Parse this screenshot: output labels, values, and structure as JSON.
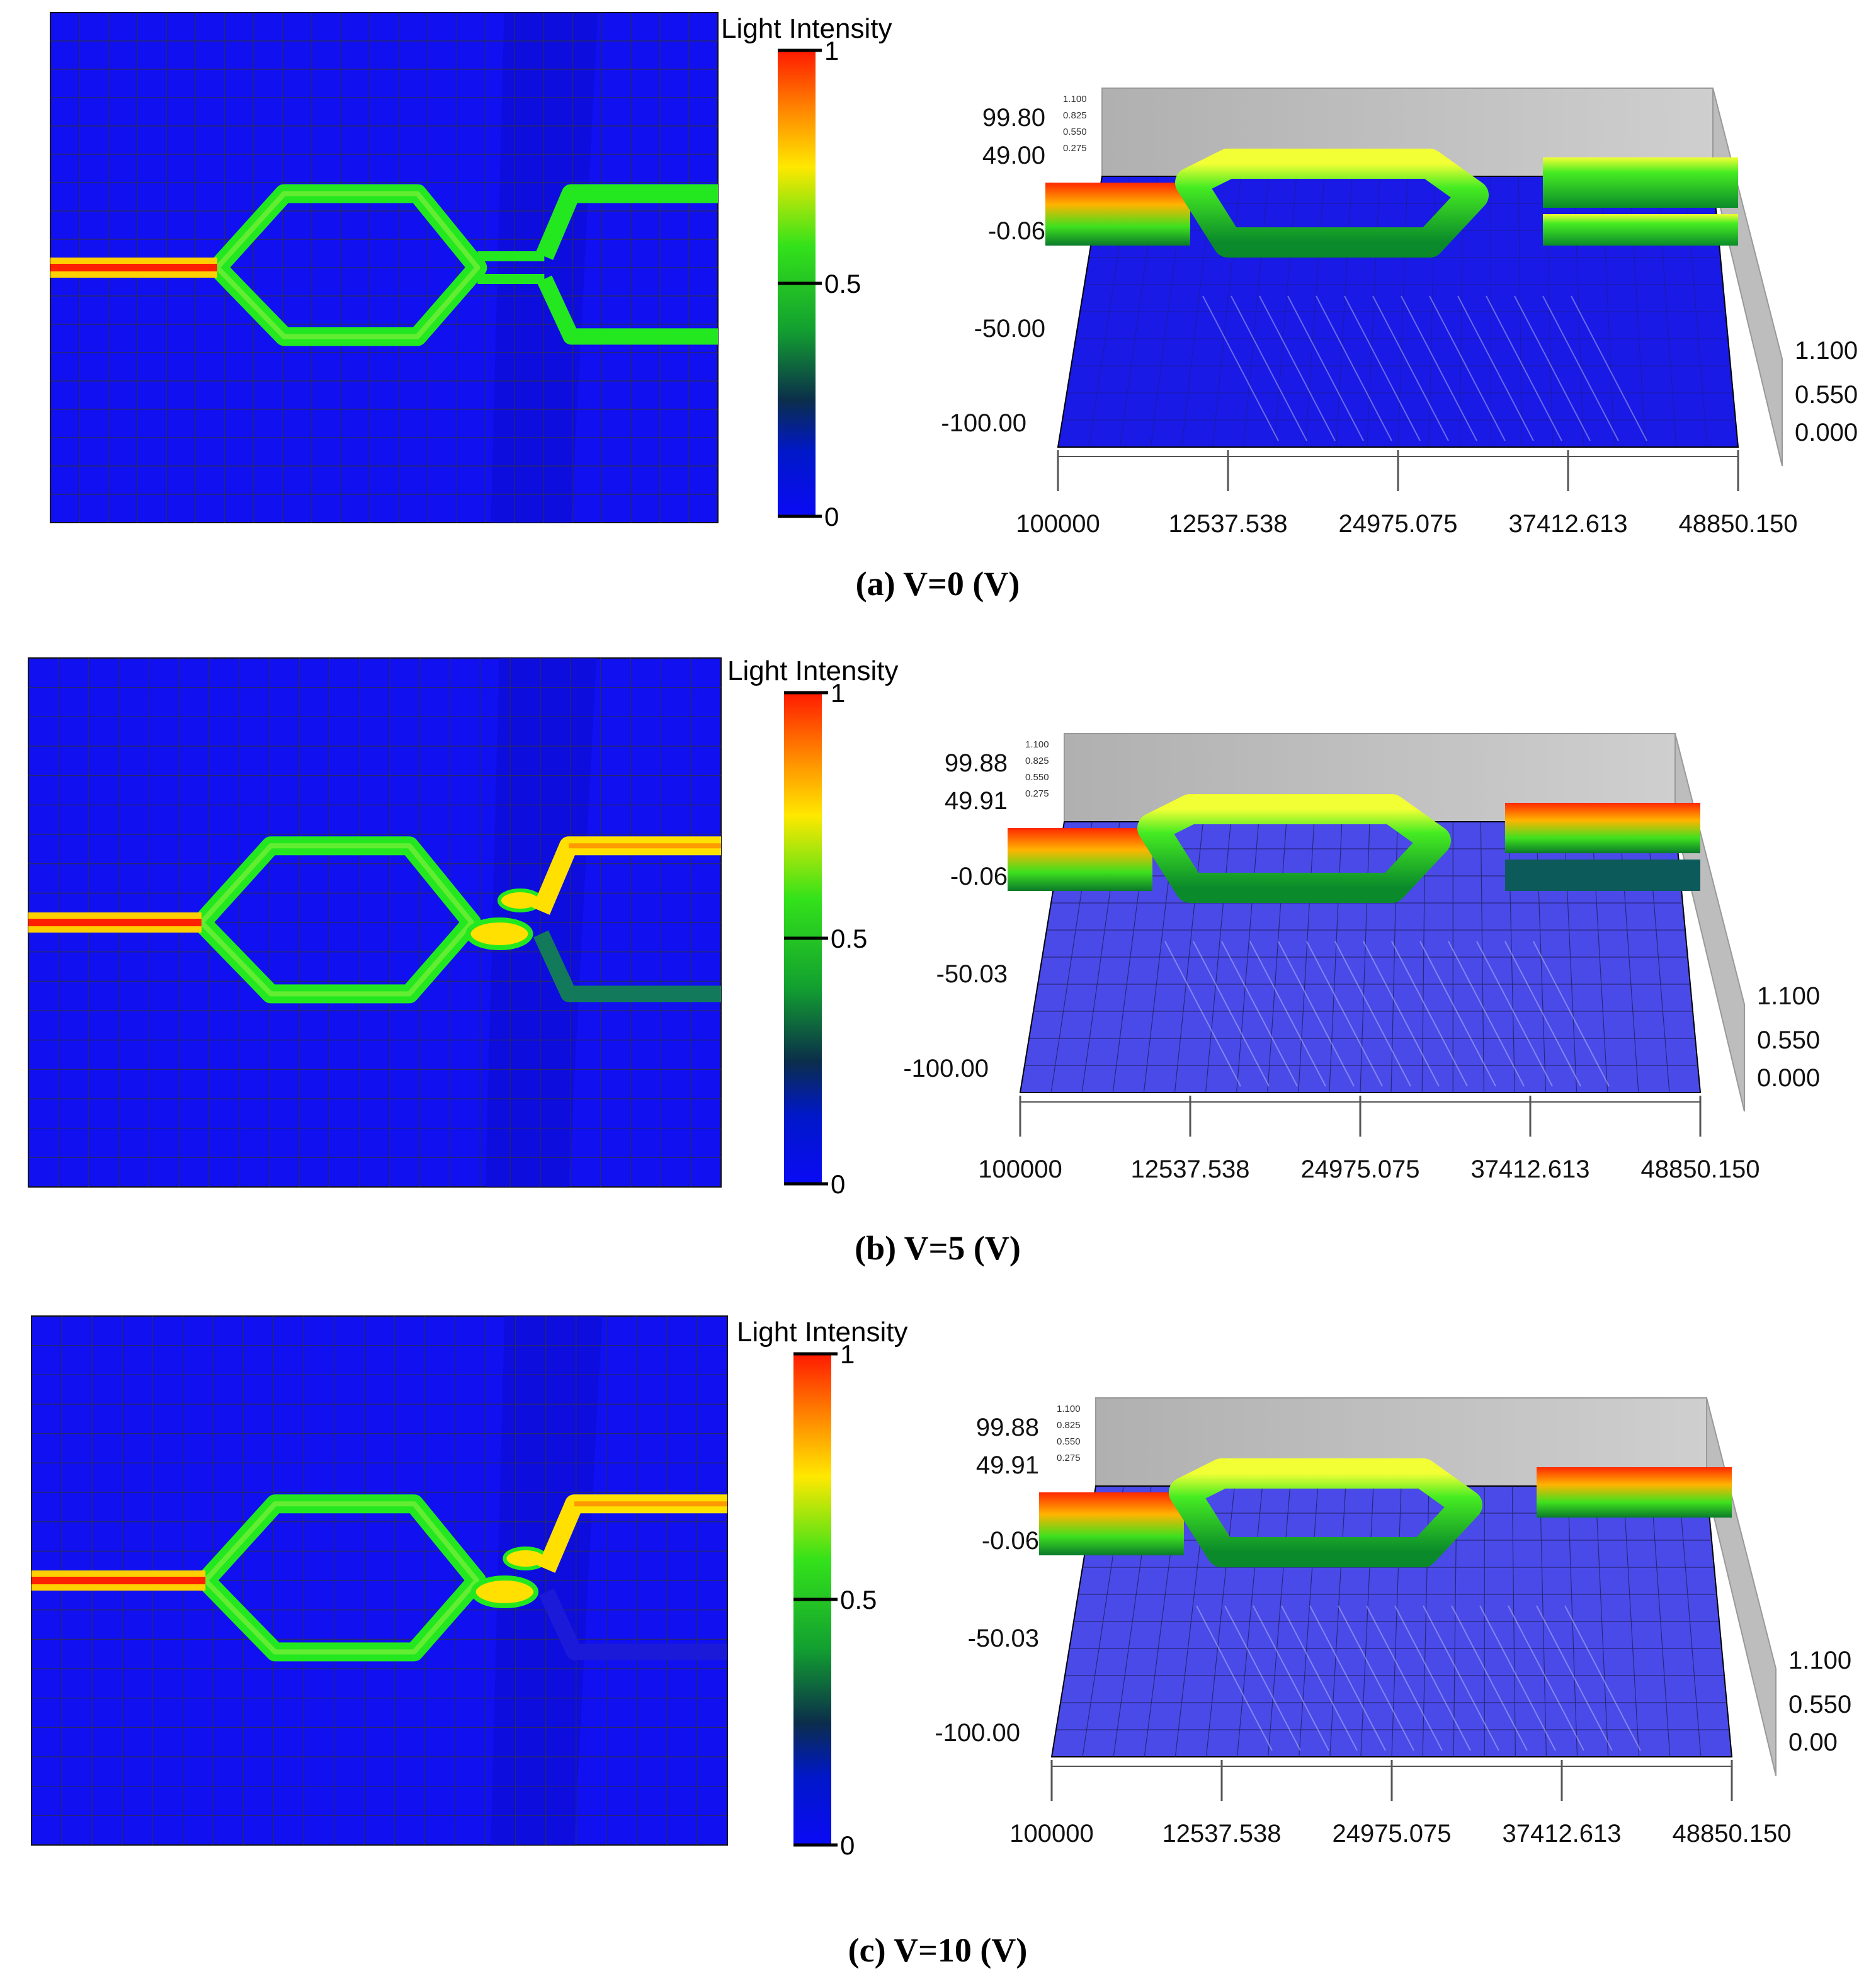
{
  "colors": {
    "background": "#1010f0",
    "guide": "#23e81f",
    "guide_core": "#ffe000",
    "input_hot": "#ff2000",
    "grid_line": "#2a2a60",
    "back_wall": "#b9b9b9"
  },
  "colorbar": {
    "title": "Light Intensity",
    "ticks": [
      "1",
      "0.5",
      "0"
    ]
  },
  "chart_data": [
    {
      "type": "heatmap",
      "panel": "a",
      "caption": "(a) V=0 (V)",
      "colorbar_title": "Light Intensity",
      "colorbar_range": [
        0,
        1
      ],
      "colorbar_ticks": [
        "1",
        "0.5",
        "0"
      ],
      "surface": {
        "x_ticks": [
          "100000",
          "12537.538",
          "24975.075",
          "37412.613",
          "48850.150"
        ],
        "y_ticks": [
          "99.80",
          "49.00",
          "-0.06",
          "-50.00",
          "-100.00"
        ],
        "z_ticks": [
          "1.100",
          "0.550",
          "0.000"
        ],
        "back_z_ticks": [
          "1.100",
          "0.825",
          "0.550",
          "0.275"
        ]
      },
      "output_intensity": {
        "upper": 0.5,
        "lower": 0.5
      }
    },
    {
      "type": "heatmap",
      "panel": "b",
      "caption": "(b) V=5 (V)",
      "colorbar_title": "Light Intensity",
      "colorbar_range": [
        0,
        1
      ],
      "colorbar_ticks": [
        "1",
        "0.5",
        "0"
      ],
      "surface": {
        "x_ticks": [
          "100000",
          "12537.538",
          "24975.075",
          "37412.613",
          "48850.150"
        ],
        "y_ticks": [
          "99.88",
          "49.91",
          "-0.06",
          "-50.03",
          "-100.00"
        ],
        "z_ticks": [
          "1.100",
          "0.550",
          "0.000"
        ],
        "back_z_ticks": [
          "1.100",
          "0.825",
          "0.550",
          "0.275"
        ]
      },
      "output_intensity": {
        "upper": 0.85,
        "lower": 0.15
      }
    },
    {
      "type": "heatmap",
      "panel": "c",
      "caption": "(c) V=10 (V)",
      "colorbar_title": "Light Intensity",
      "colorbar_range": [
        0,
        1
      ],
      "colorbar_ticks": [
        "1",
        "0.5",
        "0"
      ],
      "surface": {
        "x_ticks": [
          "100000",
          "12537.538",
          "24975.075",
          "37412.613",
          "48850.150"
        ],
        "y_ticks": [
          "99.88",
          "49.91",
          "-0.06",
          "-50.03",
          "-100.00"
        ],
        "z_ticks": [
          "1.100",
          "0.550",
          "0.00"
        ],
        "back_z_ticks": [
          "1.100",
          "0.825",
          "0.550",
          "0.275"
        ]
      },
      "output_intensity": {
        "upper": 0.95,
        "lower": 0.0
      }
    }
  ]
}
